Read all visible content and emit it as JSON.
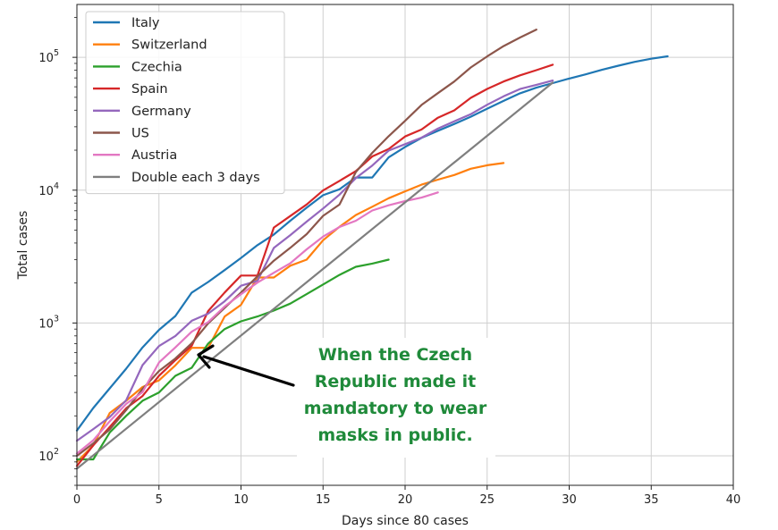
{
  "chart_data": {
    "type": "line",
    "xlabel": "Days since 80 cases",
    "ylabel": "Total cases",
    "xlim": [
      0,
      40
    ],
    "ylim": [
      60,
      250000
    ],
    "yscale": "log",
    "grid": true,
    "legend_position": "top-left",
    "x_ticks": [
      "0",
      "5",
      "10",
      "15",
      "20",
      "25",
      "30",
      "35",
      "40"
    ],
    "y_ticks": [
      {
        "value": 100,
        "base": "10",
        "exp": "2"
      },
      {
        "value": 1000,
        "base": "10",
        "exp": "3"
      },
      {
        "value": 10000,
        "base": "10",
        "exp": "4"
      },
      {
        "value": 100000,
        "base": "10",
        "exp": "5"
      }
    ],
    "series": [
      {
        "name": "Italy",
        "color": "#1f77b4",
        "x": [
          0,
          1,
          2,
          3,
          4,
          5,
          6,
          7,
          8,
          9,
          10,
          11,
          12,
          13,
          14,
          15,
          16,
          17,
          18,
          19,
          20,
          21,
          22,
          23,
          24,
          25,
          26,
          27,
          28,
          29,
          30,
          31,
          32,
          33,
          34,
          35,
          36
        ],
        "y": [
          155,
          229,
          322,
          453,
          655,
          888,
          1128,
          1694,
          2036,
          2502,
          3089,
          3858,
          4636,
          5883,
          7375,
          9172,
          10149,
          12462,
          12462,
          17660,
          21157,
          24747,
          27980,
          31506,
          35713,
          41035,
          47021,
          53578,
          59138,
          63927,
          69176,
          74386,
          80539,
          86498,
          92472,
          97689,
          101739
        ]
      },
      {
        "name": "Switzerland",
        "color": "#ff7f0e",
        "x": [
          0,
          1,
          2,
          3,
          4,
          5,
          6,
          7,
          8,
          9,
          10,
          11,
          12,
          13,
          14,
          15,
          16,
          17,
          18,
          19,
          20,
          21,
          22,
          23,
          24,
          25,
          26
        ],
        "y": [
          90,
          120,
          210,
          260,
          330,
          370,
          480,
          650,
          650,
          1120,
          1370,
          2200,
          2200,
          2700,
          3000,
          4200,
          5300,
          6500,
          7500,
          8700,
          9800,
          11000,
          12000,
          13000,
          14500,
          15400,
          16000
        ]
      },
      {
        "name": "Czechia",
        "color": "#2ca02c",
        "x": [
          0,
          1,
          2,
          3,
          4,
          5,
          6,
          7,
          8,
          9,
          10,
          11,
          12,
          13,
          14,
          15,
          16,
          17,
          18,
          19
        ],
        "y": [
          94,
          94,
          150,
          200,
          260,
          300,
          400,
          460,
          700,
          900,
          1030,
          1120,
          1240,
          1400,
          1650,
          1950,
          2300,
          2650,
          2800,
          3000
        ]
      },
      {
        "name": "Spain",
        "color": "#d62728",
        "x": [
          0,
          1,
          2,
          3,
          4,
          5,
          6,
          7,
          8,
          9,
          10,
          11,
          12,
          13,
          14,
          15,
          16,
          17,
          18,
          19,
          20,
          21,
          22,
          23,
          24,
          25,
          26,
          27,
          28,
          29
        ],
        "y": [
          84,
          120,
          165,
          228,
          282,
          401,
          525,
          674,
          1231,
          1695,
          2277,
          2277,
          5232,
          6391,
          7798,
          9942,
          11748,
          13910,
          17963,
          20410,
          25374,
          28603,
          35136,
          39885,
          49515,
          57786,
          65719,
          73235,
          80110,
          87956
        ]
      },
      {
        "name": "Germany",
        "color": "#9467bd",
        "x": [
          0,
          1,
          2,
          3,
          4,
          5,
          6,
          7,
          8,
          9,
          10,
          11,
          12,
          13,
          14,
          15,
          16,
          17,
          18,
          19,
          20,
          21,
          22,
          23,
          24,
          25,
          26,
          27,
          28,
          29
        ],
        "y": [
          130,
          159,
          196,
          262,
          482,
          670,
          799,
          1040,
          1176,
          1457,
          1908,
          2078,
          3675,
          4585,
          5795,
          7272,
          9257,
          12327,
          15320,
          19848,
          22213,
          24873,
          29056,
          32986,
          37323,
          43938,
          50871,
          57695,
          62095,
          66885
        ]
      },
      {
        "name": "US",
        "color": "#8c564b",
        "x": [
          0,
          1,
          2,
          3,
          4,
          5,
          6,
          7,
          8,
          9,
          10,
          11,
          12,
          13,
          14,
          15,
          16,
          17,
          18,
          19,
          20,
          21,
          22,
          23,
          24,
          25,
          26,
          27,
          28
        ],
        "y": [
          100,
          124,
          158,
          221,
          319,
          435,
          541,
          704,
          994,
          1301,
          1697,
          2247,
          2943,
          3680,
          4663,
          6411,
          7786,
          13680,
          19101,
          25493,
          33276,
          43847,
          53740,
          65778,
          83836,
          101657,
          121478,
          140886,
          161807
        ]
      },
      {
        "name": "Austria",
        "color": "#e377c2",
        "x": [
          0,
          1,
          2,
          3,
          4,
          5,
          6,
          7,
          8,
          9,
          10,
          11,
          12,
          13,
          14,
          15,
          16,
          17,
          18,
          19,
          20,
          21,
          22
        ],
        "y": [
          104,
          131,
          182,
          246,
          302,
          504,
          655,
          860,
          1016,
          1332,
          1646,
          2013,
          2388,
          2814,
          3582,
          4474,
          5283,
          5888,
          7029,
          7697,
          8271,
          8788,
          9618
        ]
      },
      {
        "name": "Double each 3 days",
        "color": "#7f7f7f",
        "x": [
          0,
          29
        ],
        "y": [
          80,
          64509
        ]
      }
    ],
    "annotations": [
      {
        "lines": [
          "When the Czech",
          "Republic made it",
          "mandatory to wear",
          "masks in public."
        ],
        "arrow_target": [
          8.5,
          600
        ],
        "color": "#1f8a3a"
      }
    ]
  }
}
